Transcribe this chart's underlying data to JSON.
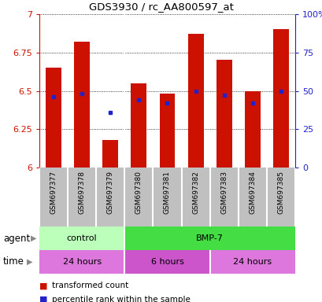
{
  "title": "GDS3930 / rc_AA800597_at",
  "samples": [
    "GSM697377",
    "GSM697378",
    "GSM697379",
    "GSM697380",
    "GSM697381",
    "GSM697382",
    "GSM697383",
    "GSM697384",
    "GSM697385"
  ],
  "bar_values": [
    6.65,
    6.82,
    6.18,
    6.55,
    6.48,
    6.87,
    6.7,
    6.5,
    6.9
  ],
  "blue_dot_values": [
    6.46,
    6.48,
    6.36,
    6.44,
    6.42,
    6.5,
    6.47,
    6.42,
    6.5
  ],
  "ylim": [
    6.0,
    7.0
  ],
  "yticks_left": [
    6.0,
    6.25,
    6.5,
    6.75,
    7.0
  ],
  "ytick_labels_left": [
    "6",
    "6.25",
    "6.5",
    "6.75",
    "7"
  ],
  "yticks_right_vals": [
    6.0,
    6.25,
    6.5,
    6.75,
    7.0
  ],
  "ytick_labels_right": [
    "0",
    "25",
    "50",
    "75",
    "100%"
  ],
  "bar_color": "#cc1100",
  "blue_color": "#2222cc",
  "bar_bottom": 6.0,
  "agent_groups": [
    {
      "label": "control",
      "start": 0,
      "end": 3,
      "color": "#bbffbb"
    },
    {
      "label": "BMP-7",
      "start": 3,
      "end": 9,
      "color": "#44dd44"
    }
  ],
  "time_groups": [
    {
      "label": "24 hours",
      "start": 0,
      "end": 3,
      "color": "#dd77dd"
    },
    {
      "label": "6 hours",
      "start": 3,
      "end": 6,
      "color": "#cc55cc"
    },
    {
      "label": "24 hours",
      "start": 6,
      "end": 9,
      "color": "#dd77dd"
    }
  ],
  "legend_items": [
    {
      "color": "#cc1100",
      "label": "transformed count"
    },
    {
      "color": "#2222cc",
      "label": "percentile rank within the sample"
    }
  ],
  "ylabel_color": "#cc1100",
  "right_ylabel_color": "#2222cc",
  "grid_color": "black",
  "plot_bg": "#ffffff",
  "label_bg": "#c0c0c0",
  "fig_bg": "#ffffff"
}
